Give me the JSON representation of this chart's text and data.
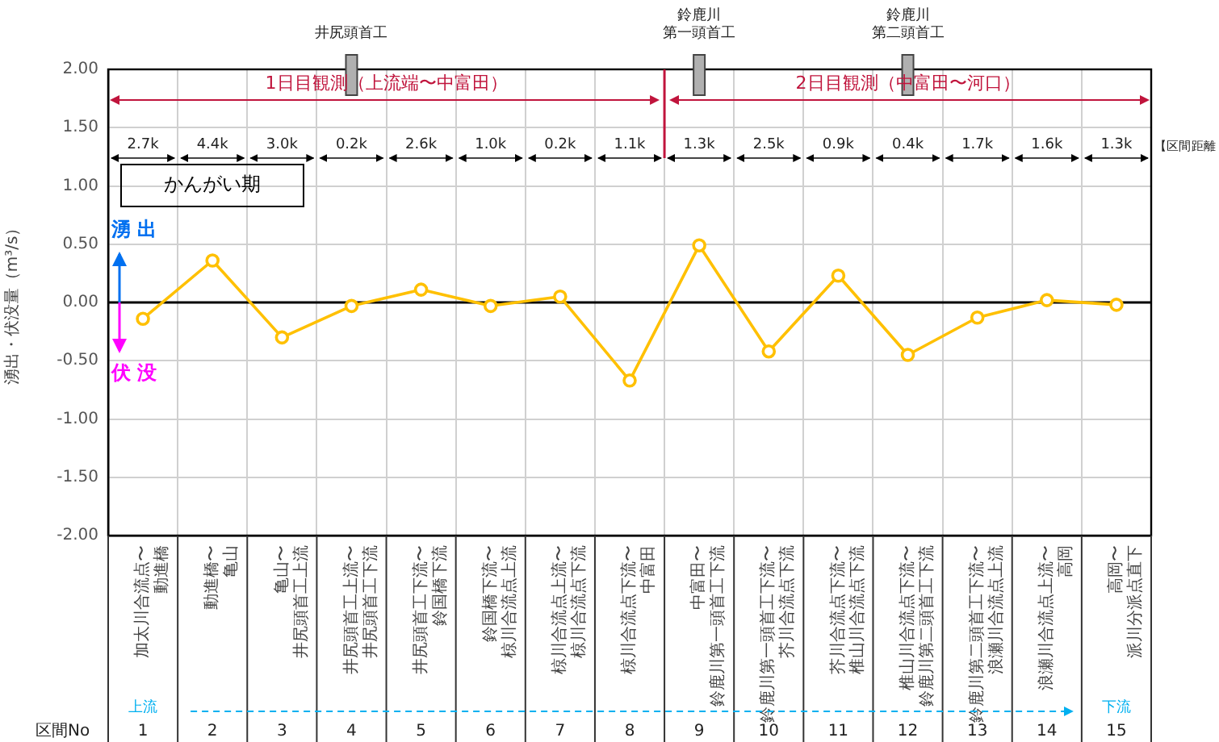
{
  "chart_data": {
    "type": "line",
    "categories": [
      "加太川合流点〜動進橋",
      "動進橋〜亀山",
      "亀山〜井尻頭首工上流",
      "井尻頭首工上流〜井尻頭首工下流",
      "井尻頭首工下流〜鈴国橋下流",
      "鈴国橋下流〜椋川合流点上流",
      "椋川合流点上流〜椋川合流点下流",
      "椋川合流点下流〜中富田",
      "中富田〜鈴鹿川第一頭首工下流",
      "鈴鹿川第一頭首工下流〜芥川合流点下流",
      "芥川合流点下流〜椎山川合流点下流",
      "椎山川合流点下流〜鈴鹿川第二頭首工下流",
      "鈴鹿川第二頭首工下流〜浪瀬川合流点上流",
      "浪瀬川合流点上流〜高岡",
      "高岡〜派川分派点直下"
    ],
    "values": [
      -0.14,
      0.36,
      -0.3,
      -0.03,
      0.11,
      -0.03,
      0.05,
      -0.67,
      0.49,
      -0.42,
      0.23,
      -0.45,
      -0.13,
      0.02,
      -0.02
    ],
    "color": "#ffc000",
    "ylabel": "湧出・伏没量（m³/s）",
    "ylim": [
      -2,
      2
    ],
    "yticks": [
      {
        "value": -2,
        "label": "-2.00"
      },
      {
        "value": -1.5,
        "label": "-1.50"
      },
      {
        "value": -1,
        "label": "-1.00"
      },
      {
        "value": -0.5,
        "label": "-0.50"
      },
      {
        "value": 0,
        "label": "0.00"
      },
      {
        "value": 0.5,
        "label": "0.50"
      },
      {
        "value": 1,
        "label": "1.00"
      },
      {
        "value": 1.5,
        "label": "1.50"
      },
      {
        "value": 2,
        "label": "2.00"
      }
    ],
    "ref_lines": [
      {
        "axis": "y",
        "value": 0,
        "color": "#000000"
      }
    ],
    "annotations": [
      "かんがい期",
      "湧 出",
      "伏 没",
      "1日目観測（上流端〜中富田）",
      "2日目観測（中富田〜河口）",
      "井尻頭首工",
      "鈴鹿川",
      "第一頭首工",
      "鈴鹿川",
      "第二頭首工",
      "【区間距離",
      "区間No",
      "上流",
      "下流",
      "2.7k",
      "4.4k",
      "3.0k",
      "0.2k",
      "2.6k",
      "1.0k",
      "0.2k",
      "1.1k",
      "1.3k",
      "2.5k",
      "0.9k",
      "0.4k",
      "1.7k",
      "1.6k",
      "1.3k",
      "1",
      "2",
      "3",
      "4",
      "5",
      "6",
      "7",
      "8",
      "9",
      "10",
      "11",
      "12",
      "13",
      "14",
      "15"
    ],
    "grid": true,
    "legend": false,
    "marker": "circle",
    "line_style": "solid"
  }
}
